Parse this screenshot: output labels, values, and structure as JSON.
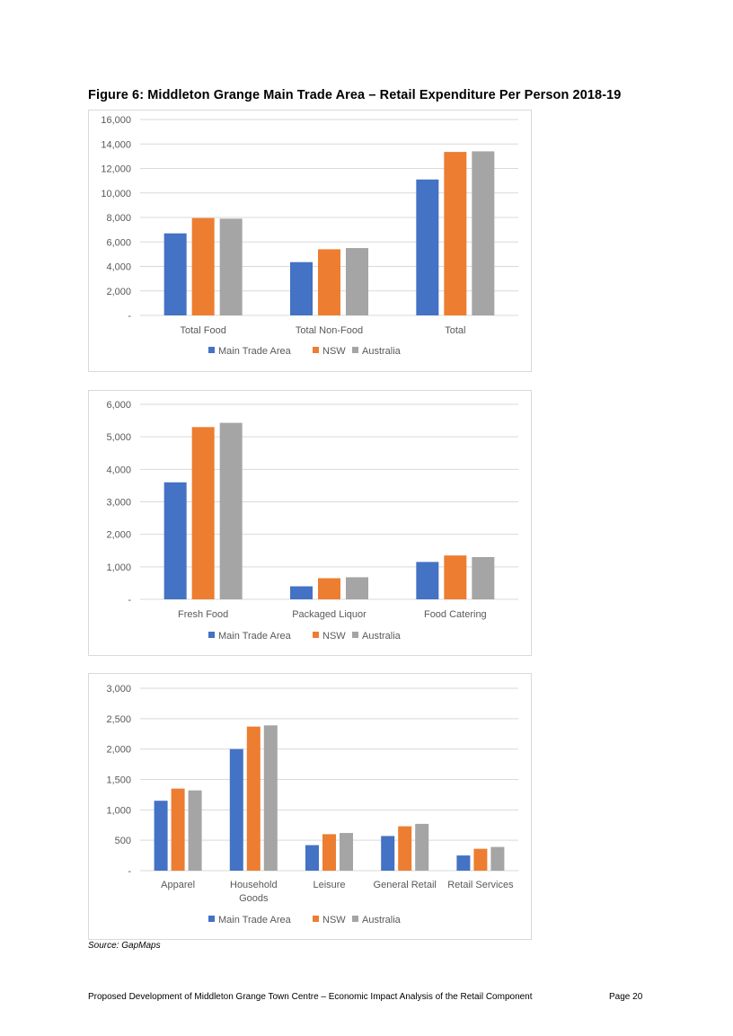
{
  "figure_title": "Figure 6: Middleton Grange Main Trade Area – Retail Expenditure Per Person 2018-19",
  "source": "Source: GapMaps",
  "footer": {
    "document_title": "Proposed Development of Middleton Grange Town Centre – Economic Impact Analysis of the Retail Component",
    "page": "Page 20"
  },
  "colors": {
    "main_trade_area": "#4472c4",
    "nsw": "#ed7d31",
    "australia": "#a5a5a5",
    "gridline": "#d9d9d9",
    "axis_text": "#595959"
  },
  "chart_data": [
    {
      "type": "bar",
      "categories": [
        "Total Food",
        "Total Non-Food",
        "Total"
      ],
      "series": [
        {
          "name": "Main Trade Area",
          "values": [
            6700,
            4350,
            11100
          ]
        },
        {
          "name": "NSW",
          "values": [
            7950,
            5400,
            13350
          ]
        },
        {
          "name": "Australia",
          "values": [
            7900,
            5500,
            13400
          ]
        }
      ],
      "ylim": [
        0,
        16000
      ],
      "yticks": [
        0,
        2000,
        4000,
        6000,
        8000,
        10000,
        12000,
        14000,
        16000
      ],
      "ytick_labels": [
        "-",
        "2,000",
        "4,000",
        "6,000",
        "8,000",
        "10,000",
        "12,000",
        "14,000",
        "16,000"
      ],
      "grid": true,
      "legend": "bottom"
    },
    {
      "type": "bar",
      "categories": [
        "Fresh Food",
        "Packaged Liquor",
        "Food Catering"
      ],
      "series": [
        {
          "name": "Main Trade Area",
          "values": [
            3600,
            400,
            1150
          ]
        },
        {
          "name": "NSW",
          "values": [
            5300,
            650,
            1350
          ]
        },
        {
          "name": "Australia",
          "values": [
            5430,
            680,
            1300
          ]
        }
      ],
      "ylim": [
        0,
        6000
      ],
      "yticks": [
        0,
        1000,
        2000,
        3000,
        4000,
        5000,
        6000
      ],
      "ytick_labels": [
        "-",
        "1,000",
        "2,000",
        "3,000",
        "4,000",
        "5,000",
        "6,000"
      ],
      "grid": true,
      "legend": "bottom"
    },
    {
      "type": "bar",
      "categories": [
        [
          "Apparel"
        ],
        [
          "Household",
          "Goods"
        ],
        [
          "Leisure"
        ],
        [
          "General Retail"
        ],
        [
          "Retail Services"
        ]
      ],
      "series": [
        {
          "name": "Main Trade Area",
          "values": [
            1150,
            2000,
            420,
            570,
            250
          ]
        },
        {
          "name": "NSW",
          "values": [
            1350,
            2370,
            600,
            730,
            360
          ]
        },
        {
          "name": "Australia",
          "values": [
            1320,
            2390,
            620,
            770,
            390
          ]
        }
      ],
      "ylim": [
        0,
        3000
      ],
      "yticks": [
        0,
        500,
        1000,
        1500,
        2000,
        2500,
        3000
      ],
      "ytick_labels": [
        "-",
        "500",
        "1,000",
        "1,500",
        "2,000",
        "2,500",
        "3,000"
      ],
      "grid": true,
      "legend": "bottom"
    }
  ]
}
